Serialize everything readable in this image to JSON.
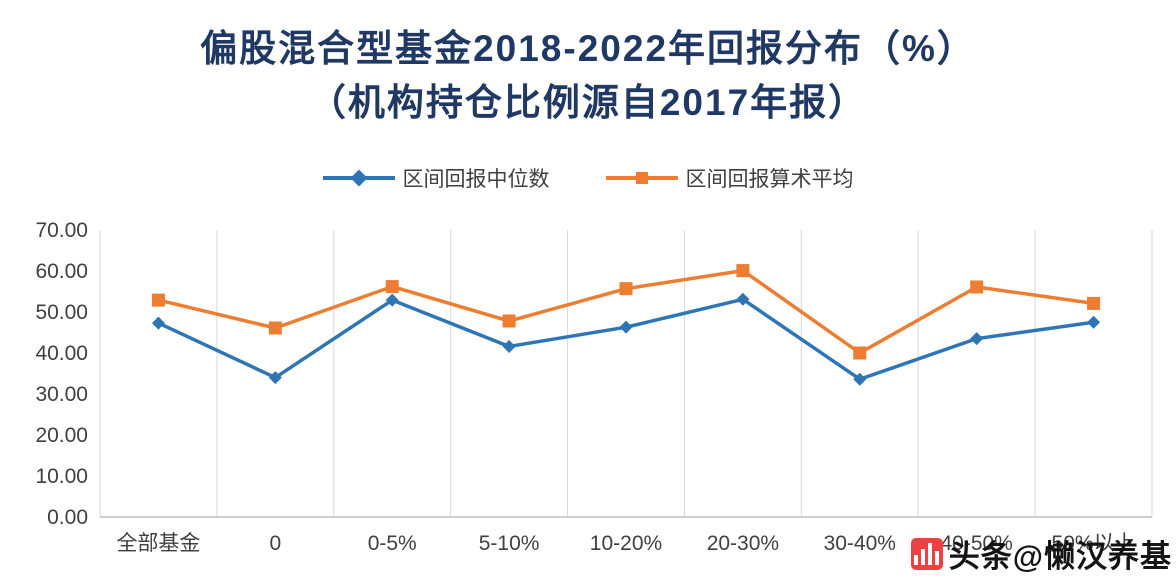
{
  "title": {
    "line1": "偏股混合型基金2018-2022年回报分布（%）",
    "line2": "（机构持仓比例源自2017年报）"
  },
  "legend": [
    {
      "label": "区间回报中位数",
      "color": "#2e75b6",
      "marker": "diamond"
    },
    {
      "label": "区间回报算术平均",
      "color": "#ed7d31",
      "marker": "square"
    }
  ],
  "watermark": {
    "text": "头条@懒汉养基",
    "logo_color": "#f04142"
  },
  "chart_data": {
    "type": "line",
    "categories": [
      "全部基金",
      "0",
      "0-5%",
      "5-10%",
      "10-20%",
      "20-30%",
      "30-40%",
      "40-50%",
      "50%以上"
    ],
    "series": [
      {
        "name": "区间回报中位数",
        "color": "#2e75b6",
        "marker": "diamond",
        "values": [
          47.3,
          34.0,
          52.9,
          41.6,
          46.3,
          53.1,
          33.6,
          43.5,
          47.5
        ]
      },
      {
        "name": "区间回报算术平均",
        "color": "#ed7d31",
        "marker": "square",
        "values": [
          52.9,
          46.1,
          56.2,
          47.8,
          55.7,
          60.1,
          40.0,
          56.1,
          52.1
        ]
      }
    ],
    "ylim": [
      0,
      70
    ],
    "ytick_step": 10,
    "ytick_decimals": 2,
    "grid": "vertical",
    "legend_position": "top",
    "axis_text_color": "#404040",
    "gridline_color": "#d9d9d9"
  }
}
